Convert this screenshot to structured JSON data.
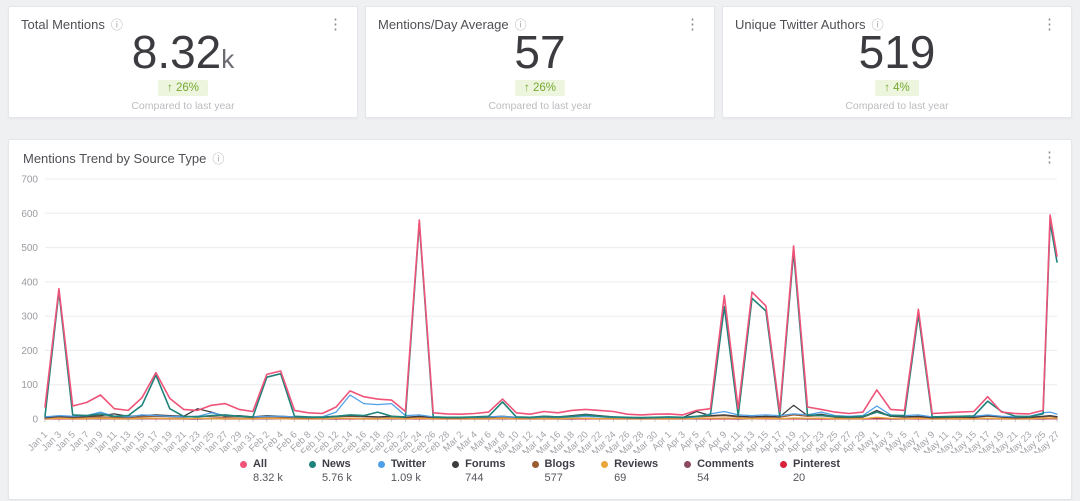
{
  "icons": {
    "info": "ⓘ",
    "kebab": "⋮",
    "up_arrow": "↑"
  },
  "kpi_cards": [
    {
      "title": "Total Mentions",
      "value": "8.32",
      "value_suffix": "k",
      "change": "↑ 26%",
      "compare_label": "Compared to last year"
    },
    {
      "title": "Mentions/Day Average",
      "value": "57",
      "value_suffix": "",
      "change": "↑ 26%",
      "compare_label": "Compared to last year"
    },
    {
      "title": "Unique Twitter Authors",
      "value": "519",
      "value_suffix": "",
      "change": "↑ 4%",
      "compare_label": "Compared to last year"
    }
  ],
  "chart_card": {
    "title": "Mentions Trend by Source Type"
  },
  "chart_data": {
    "type": "line",
    "title": "Mentions Trend by Source Type",
    "xlabel": "",
    "ylabel": "",
    "ylim": [
      0,
      700
    ],
    "yticks": [
      0,
      100,
      200,
      300,
      400,
      500,
      600,
      700
    ],
    "grid": true,
    "legend_position": "bottom",
    "x_total_days": 146,
    "x_tick_labels": [
      "Jan 1",
      "Jan 3",
      "Jan 5",
      "Jan 7",
      "Jan 9",
      "Jan 11",
      "Jan 13",
      "Jan 15",
      "Jan 17",
      "Jan 19",
      "Jan 21",
      "Jan 23",
      "Jan 25",
      "Jan 27",
      "Jan 29",
      "Jan 31",
      "Feb 2",
      "Feb 4",
      "Feb 6",
      "Feb 8",
      "Feb 10",
      "Feb 12",
      "Feb 14",
      "Feb 16",
      "Feb 18",
      "Feb 20",
      "Feb 22",
      "Feb 24",
      "Feb 26",
      "Feb 28",
      "Mar 2",
      "Mar 4",
      "Mar 6",
      "Mar 8",
      "Mar 10",
      "Mar 12",
      "Mar 14",
      "Mar 16",
      "Mar 18",
      "Mar 20",
      "Mar 22",
      "Mar 24",
      "Mar 26",
      "Mar 28",
      "Mar 30",
      "Apr 1",
      "Apr 3",
      "Apr 5",
      "Apr 7",
      "Apr 9",
      "Apr 11",
      "Apr 13",
      "Apr 15",
      "Apr 17",
      "Apr 19",
      "Apr 21",
      "Apr 23",
      "Apr 25",
      "Apr 27",
      "Apr 29",
      "May 1",
      "May 3",
      "May 5",
      "May 7",
      "May 9",
      "May 11",
      "May 13",
      "May 15",
      "May 17",
      "May 19",
      "May 21",
      "May 23",
      "May 25",
      "May 27"
    ],
    "x_days": [
      0,
      2,
      4,
      6,
      8,
      10,
      12,
      14,
      16,
      18,
      20,
      22,
      24,
      26,
      28,
      30,
      32,
      34,
      36,
      38,
      40,
      42,
      44,
      46,
      48,
      50,
      52,
      54,
      56,
      58,
      60,
      62,
      64,
      66,
      68,
      70,
      72,
      74,
      76,
      78,
      80,
      82,
      84,
      86,
      88,
      90,
      92,
      94,
      96,
      98,
      100,
      102,
      104,
      106,
      108,
      110,
      112,
      114,
      116,
      118,
      120,
      122,
      124,
      126,
      128,
      130,
      132,
      134,
      136,
      138,
      140,
      142,
      144,
      145,
      146
    ],
    "series": [
      {
        "name": "All",
        "total": "8.32 k",
        "color": "#ef5379",
        "values": [
          35,
          380,
          38,
          48,
          70,
          30,
          25,
          62,
          135,
          60,
          28,
          25,
          40,
          45,
          28,
          22,
          130,
          140,
          25,
          18,
          16,
          35,
          82,
          65,
          58,
          55,
          22,
          580,
          18,
          15,
          14,
          16,
          20,
          58,
          18,
          14,
          22,
          18,
          25,
          28,
          25,
          22,
          14,
          12,
          14,
          15,
          12,
          25,
          30,
          360,
          30,
          370,
          330,
          22,
          505,
          35,
          28,
          20,
          16,
          20,
          85,
          28,
          25,
          320,
          16,
          18,
          20,
          22,
          65,
          20,
          16,
          15,
          25,
          595,
          475
        ]
      },
      {
        "name": "News",
        "total": "5.76 k",
        "color": "#1d837b",
        "values": [
          8,
          372,
          12,
          10,
          15,
          8,
          10,
          40,
          128,
          30,
          8,
          6,
          10,
          12,
          8,
          6,
          122,
          132,
          8,
          6,
          5,
          8,
          12,
          10,
          20,
          8,
          6,
          572,
          6,
          5,
          5,
          6,
          8,
          50,
          6,
          5,
          8,
          6,
          8,
          12,
          8,
          6,
          5,
          4,
          5,
          6,
          5,
          8,
          12,
          328,
          10,
          352,
          315,
          8,
          488,
          12,
          10,
          8,
          6,
          8,
          20,
          10,
          10,
          305,
          6,
          7,
          8,
          9,
          52,
          22,
          8,
          7,
          15,
          575,
          458
        ]
      },
      {
        "name": "Twitter",
        "total": "1.09 k",
        "color": "#4f9fe8",
        "values": [
          6,
          10,
          8,
          10,
          20,
          8,
          6,
          12,
          10,
          8,
          6,
          8,
          18,
          10,
          8,
          6,
          8,
          8,
          6,
          5,
          6,
          20,
          70,
          45,
          42,
          45,
          10,
          12,
          6,
          5,
          5,
          5,
          6,
          8,
          5,
          4,
          6,
          5,
          6,
          8,
          6,
          5,
          4,
          4,
          4,
          5,
          4,
          6,
          15,
          22,
          12,
          10,
          12,
          10,
          15,
          12,
          20,
          10,
          8,
          10,
          38,
          12,
          10,
          12,
          6,
          7,
          8,
          8,
          12,
          8,
          6,
          8,
          18,
          20,
          14
        ]
      },
      {
        "name": "Forums",
        "total": "744",
        "color": "#3d3d41",
        "values": [
          4,
          8,
          6,
          8,
          10,
          15,
          8,
          10,
          12,
          10,
          8,
          30,
          20,
          8,
          10,
          6,
          10,
          8,
          6,
          5,
          6,
          8,
          10,
          8,
          6,
          8,
          5,
          8,
          5,
          4,
          4,
          5,
          6,
          8,
          5,
          4,
          8,
          6,
          10,
          14,
          10,
          6,
          4,
          3,
          4,
          5,
          4,
          22,
          10,
          12,
          8,
          6,
          8,
          6,
          40,
          10,
          14,
          6,
          5,
          6,
          25,
          8,
          6,
          8,
          4,
          5,
          6,
          5,
          10,
          6,
          4,
          5,
          8,
          10,
          7
        ]
      },
      {
        "name": "Blogs",
        "total": "577",
        "color": "#9a5b30",
        "values": [
          3,
          6,
          4,
          5,
          6,
          5,
          4,
          6,
          8,
          6,
          5,
          8,
          6,
          5,
          6,
          4,
          6,
          5,
          4,
          3,
          4,
          6,
          8,
          6,
          5,
          6,
          4,
          6,
          4,
          3,
          3,
          4,
          4,
          6,
          4,
          3,
          5,
          4,
          6,
          8,
          6,
          4,
          3,
          2,
          3,
          4,
          3,
          6,
          8,
          10,
          6,
          5,
          6,
          5,
          12,
          8,
          10,
          5,
          4,
          5,
          20,
          8,
          5,
          6,
          3,
          4,
          5,
          4,
          8,
          5,
          3,
          4,
          6,
          8,
          5
        ]
      },
      {
        "name": "Reviews",
        "total": "69",
        "color": "#eaa63c",
        "values": [
          1,
          2,
          1,
          1,
          2,
          1,
          1,
          2,
          2,
          1,
          1,
          2,
          1,
          1,
          1,
          1,
          2,
          1,
          1,
          1,
          1,
          2,
          2,
          1,
          1,
          2,
          1,
          2,
          1,
          1,
          1,
          1,
          1,
          2,
          1,
          1,
          1,
          1,
          2,
          2,
          1,
          1,
          1,
          1,
          1,
          1,
          1,
          2,
          2,
          3,
          2,
          1,
          2,
          1,
          3,
          2,
          2,
          1,
          1,
          1,
          5,
          2,
          1,
          2,
          1,
          1,
          1,
          1,
          2,
          1,
          1,
          1,
          2,
          3,
          2
        ]
      },
      {
        "name": "Comments",
        "total": "54",
        "color": "#8c4964",
        "values": [
          1,
          2,
          1,
          1,
          1,
          1,
          1,
          1,
          2,
          1,
          1,
          1,
          1,
          1,
          1,
          1,
          1,
          1,
          1,
          1,
          1,
          1,
          2,
          1,
          1,
          1,
          1,
          2,
          1,
          1,
          1,
          1,
          1,
          1,
          1,
          1,
          1,
          1,
          1,
          2,
          1,
          1,
          1,
          1,
          1,
          1,
          1,
          1,
          2,
          2,
          1,
          1,
          2,
          1,
          2,
          1,
          2,
          1,
          1,
          1,
          3,
          1,
          1,
          2,
          1,
          1,
          1,
          1,
          1,
          1,
          1,
          1,
          1,
          2,
          1
        ]
      },
      {
        "name": "Pinterest",
        "total": "20",
        "color": "#d9233e",
        "values": [
          0,
          1,
          0,
          0,
          1,
          0,
          0,
          1,
          1,
          0,
          0,
          0,
          1,
          0,
          0,
          0,
          1,
          1,
          0,
          0,
          0,
          0,
          1,
          0,
          0,
          1,
          0,
          1,
          0,
          0,
          0,
          0,
          0,
          1,
          0,
          0,
          0,
          0,
          0,
          1,
          0,
          0,
          0,
          0,
          0,
          0,
          0,
          1,
          0,
          1,
          0,
          1,
          1,
          0,
          1,
          0,
          0,
          0,
          0,
          0,
          1,
          0,
          0,
          1,
          0,
          0,
          0,
          0,
          1,
          0,
          0,
          0,
          0,
          1,
          1
        ]
      }
    ]
  }
}
